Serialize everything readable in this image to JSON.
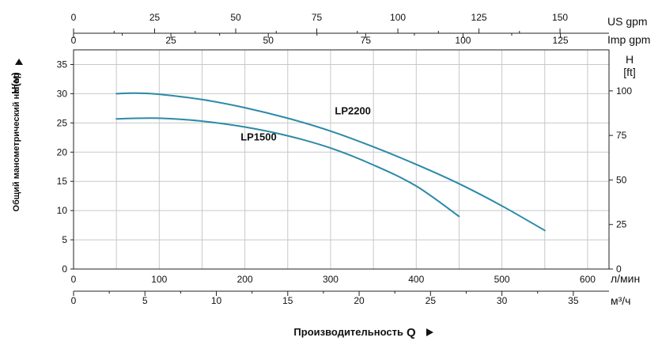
{
  "chart_data": {
    "type": "line",
    "axes": {
      "left": {
        "label": "Общий манометрический напор",
        "symbol": "H(м)",
        "ticks": [
          0,
          5,
          10,
          15,
          20,
          25,
          30,
          35
        ],
        "range": [
          0,
          37.5
        ]
      },
      "right": {
        "label": "H",
        "unit": "[ft]",
        "ticks": [
          0,
          25,
          50,
          75,
          100
        ]
      },
      "bottom_lpm": {
        "unit": "л/мин",
        "ticks": [
          0,
          100,
          200,
          300,
          400,
          500,
          600
        ],
        "range": [
          0,
          625
        ]
      },
      "bottom_m3h": {
        "unit": "м³/ч",
        "ticks": [
          0,
          5,
          10,
          15,
          20,
          25,
          30,
          35
        ]
      },
      "top_usgpm": {
        "unit": "US gpm",
        "ticks": [
          0,
          25,
          50,
          75,
          100,
          125,
          150
        ]
      },
      "top_impgpm": {
        "unit": "Imp gpm",
        "ticks": [
          0,
          25,
          50,
          75,
          100,
          125
        ]
      },
      "x_title": "Производительность",
      "x_symbol": "Q",
      "grid": true
    },
    "series": [
      {
        "name": "LP2200",
        "x": [
          50,
          75,
          100,
          150,
          200,
          250,
          300,
          350,
          400,
          450,
          500,
          550
        ],
        "y": [
          30.0,
          30.1,
          29.9,
          29.0,
          27.6,
          25.8,
          23.6,
          20.9,
          17.9,
          14.6,
          10.8,
          6.6
        ]
      },
      {
        "name": "LP1500",
        "x": [
          50,
          100,
          150,
          200,
          250,
          300,
          350,
          400,
          450
        ],
        "y": [
          25.7,
          25.8,
          25.3,
          24.3,
          22.8,
          20.7,
          17.8,
          14.2,
          9.0
        ]
      }
    ],
    "curve_labels": [
      {
        "text": "LP2200",
        "x": 305,
        "y": 26.5
      },
      {
        "text": "LP1500",
        "x": 195,
        "y": 22.0
      }
    ]
  }
}
